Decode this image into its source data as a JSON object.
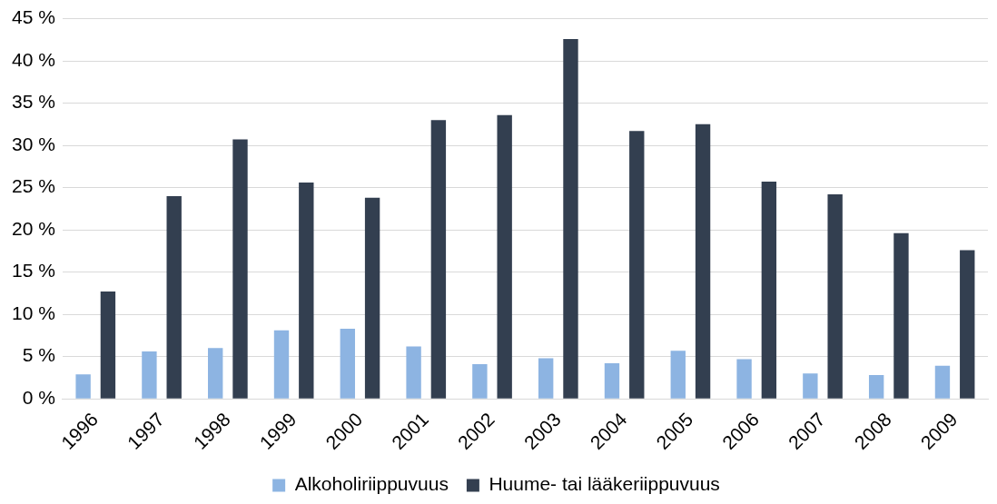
{
  "chart_data": {
    "type": "bar",
    "categories": [
      "1996",
      "1997",
      "1998",
      "1999",
      "2000",
      "2001",
      "2002",
      "2003",
      "2004",
      "2005",
      "2006",
      "2007",
      "2008",
      "2009"
    ],
    "series": [
      {
        "name": "Alkoholiriippuvuus",
        "color": "#8db4e2",
        "values": [
          2.9,
          5.6,
          6.0,
          8.1,
          8.3,
          6.2,
          4.1,
          4.8,
          4.2,
          5.7,
          4.7,
          3.0,
          2.8,
          3.9
        ]
      },
      {
        "name": "Huume- tai lääkeriippuvuus",
        "color": "#333f50",
        "values": [
          12.7,
          24.0,
          30.7,
          25.6,
          23.8,
          33.0,
          33.6,
          42.6,
          31.7,
          32.5,
          25.7,
          24.2,
          19.6,
          17.6
        ]
      }
    ],
    "ylim": [
      0,
      45
    ],
    "yticks": [
      {
        "value": 0,
        "label": "0 %"
      },
      {
        "value": 5,
        "label": "5 %"
      },
      {
        "value": 10,
        "label": "10 %"
      },
      {
        "value": 15,
        "label": "15 %"
      },
      {
        "value": 20,
        "label": "20 %"
      },
      {
        "value": 25,
        "label": "25 %"
      },
      {
        "value": 30,
        "label": "30 %"
      },
      {
        "value": 35,
        "label": "35 %"
      },
      {
        "value": 40,
        "label": "40 %"
      },
      {
        "value": 45,
        "label": "45 %"
      }
    ],
    "grid": "y",
    "legend": "bottom"
  }
}
